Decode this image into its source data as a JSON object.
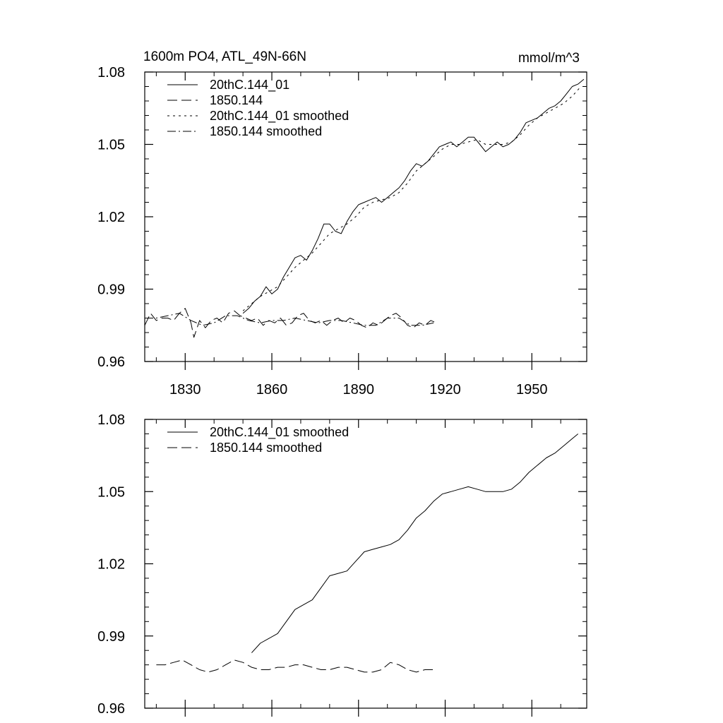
{
  "chart_data": [
    {
      "type": "line",
      "title": "1600m PO4, ATL_49N-66N",
      "units": "mmol/m^3",
      "xlim": [
        1816,
        1969
      ],
      "ylim": [
        0.96,
        1.08
      ],
      "xticks": [
        1830,
        1860,
        1890,
        1920,
        1950
      ],
      "xtick_labels": [
        "1830",
        "1860",
        "1890",
        "1920",
        "1950"
      ],
      "yticks": [
        0.96,
        0.99,
        1.02,
        1.05,
        1.08
      ],
      "ytick_labels": [
        "0.96",
        "0.99",
        "1.02",
        "1.05",
        "1.08"
      ],
      "legend_position": "top-left",
      "series": [
        {
          "name": "20thC.144_01",
          "style": "solid",
          "x": [
            1850,
            1852,
            1854,
            1856,
            1858,
            1860,
            1862,
            1864,
            1866,
            1868,
            1870,
            1872,
            1874,
            1876,
            1878,
            1880,
            1882,
            1884,
            1886,
            1888,
            1890,
            1892,
            1894,
            1896,
            1898,
            1900,
            1902,
            1904,
            1906,
            1908,
            1910,
            1912,
            1914,
            1916,
            1918,
            1920,
            1922,
            1924,
            1926,
            1928,
            1930,
            1932,
            1934,
            1936,
            1938,
            1940,
            1942,
            1944,
            1946,
            1948,
            1950,
            1952,
            1954,
            1956,
            1958,
            1960,
            1962,
            1964,
            1966,
            1968
          ],
          "y": [
            0.98,
            0.982,
            0.985,
            0.987,
            0.991,
            0.988,
            0.99,
            0.995,
            0.999,
            1.003,
            1.004,
            1.002,
            1.006,
            1.011,
            1.017,
            1.017,
            1.014,
            1.013,
            1.018,
            1.022,
            1.025,
            1.026,
            1.027,
            1.028,
            1.026,
            1.028,
            1.03,
            1.032,
            1.035,
            1.039,
            1.042,
            1.041,
            1.043,
            1.046,
            1.049,
            1.05,
            1.051,
            1.049,
            1.051,
            1.053,
            1.053,
            1.05,
            1.047,
            1.049,
            1.051,
            1.049,
            1.05,
            1.052,
            1.055,
            1.059,
            1.06,
            1.061,
            1.063,
            1.065,
            1.066,
            1.068,
            1.071,
            1.074,
            1.075,
            1.077
          ]
        },
        {
          "name": "1850.144",
          "style": "dash",
          "x": [
            1816,
            1818,
            1820,
            1822,
            1824,
            1826,
            1828,
            1830,
            1832,
            1833,
            1835,
            1837,
            1839,
            1841,
            1843,
            1845,
            1847,
            1849,
            1851,
            1853,
            1855,
            1857,
            1859,
            1861,
            1863,
            1865,
            1867,
            1869,
            1871,
            1873,
            1875,
            1877,
            1879,
            1881,
            1883,
            1885,
            1887,
            1889,
            1891,
            1893,
            1895,
            1897,
            1899,
            1901,
            1903,
            1905,
            1907,
            1909,
            1911,
            1913,
            1915,
            1917
          ],
          "y": [
            0.975,
            0.98,
            0.977,
            0.978,
            0.978,
            0.977,
            0.98,
            0.982,
            0.976,
            0.97,
            0.977,
            0.974,
            0.977,
            0.978,
            0.976,
            0.98,
            0.981,
            0.979,
            0.978,
            0.977,
            0.978,
            0.975,
            0.977,
            0.976,
            0.978,
            0.975,
            0.976,
            0.979,
            0.98,
            0.977,
            0.976,
            0.977,
            0.975,
            0.977,
            0.978,
            0.976,
            0.978,
            0.977,
            0.975,
            0.974,
            0.976,
            0.975,
            0.977,
            0.979,
            0.98,
            0.978,
            0.975,
            0.974,
            0.976,
            0.975,
            0.977,
            0.976
          ]
        },
        {
          "name": "20thC.144_01 smoothed",
          "style": "dot",
          "x": [
            1850,
            1853,
            1856,
            1859,
            1862,
            1865,
            1868,
            1871,
            1874,
            1877,
            1880,
            1883,
            1886,
            1889,
            1892,
            1895,
            1898,
            1901,
            1904,
            1907,
            1910,
            1913,
            1916,
            1919,
            1922,
            1925,
            1928,
            1931,
            1934,
            1937,
            1940,
            1943,
            1946,
            1949,
            1952,
            1955,
            1958,
            1961,
            1964,
            1967
          ],
          "y": [
            0.981,
            0.984,
            0.987,
            0.989,
            0.991,
            0.995,
            0.999,
            1.002,
            1.005,
            1.009,
            1.013,
            1.015,
            1.017,
            1.02,
            1.024,
            1.026,
            1.027,
            1.028,
            1.03,
            1.034,
            1.039,
            1.042,
            1.045,
            1.048,
            1.05,
            1.05,
            1.051,
            1.052,
            1.05,
            1.05,
            1.05,
            1.051,
            1.054,
            1.058,
            1.061,
            1.063,
            1.065,
            1.067,
            1.07,
            1.074
          ]
        },
        {
          "name": "1850.144 smoothed",
          "style": "dashdot",
          "x": [
            1816,
            1820,
            1824,
            1828,
            1832,
            1836,
            1840,
            1844,
            1848,
            1852,
            1856,
            1860,
            1864,
            1868,
            1872,
            1876,
            1880,
            1884,
            1888,
            1892,
            1896,
            1900,
            1904,
            1908,
            1912,
            1916
          ],
          "y": [
            0.978,
            0.978,
            0.979,
            0.98,
            0.977,
            0.975,
            0.976,
            0.979,
            0.979,
            0.977,
            0.976,
            0.977,
            0.977,
            0.978,
            0.977,
            0.976,
            0.977,
            0.977,
            0.976,
            0.975,
            0.975,
            0.978,
            0.978,
            0.975,
            0.975,
            0.976
          ]
        }
      ]
    },
    {
      "type": "line",
      "xlim": [
        1816,
        1969
      ],
      "ylim": [
        0.96,
        1.08
      ],
      "xticks": [
        1830,
        1860,
        1890,
        1920,
        1950
      ],
      "yticks": [
        0.96,
        0.99,
        1.02,
        1.05,
        1.08
      ],
      "ytick_labels": [
        "0.96",
        "0.99",
        "1.02",
        "1.05",
        "1.08"
      ],
      "legend_position": "top-left",
      "series": [
        {
          "name": "20thC.144_01 smoothed",
          "style": "solid",
          "x": [
            1853,
            1856,
            1859,
            1862,
            1865,
            1868,
            1871,
            1874,
            1877,
            1880,
            1883,
            1886,
            1889,
            1892,
            1895,
            1898,
            1901,
            1904,
            1907,
            1910,
            1913,
            1916,
            1919,
            1922,
            1925,
            1928,
            1931,
            1934,
            1937,
            1940,
            1943,
            1946,
            1949,
            1952,
            1955,
            1958,
            1961,
            1964,
            1966
          ],
          "y": [
            0.983,
            0.987,
            0.989,
            0.991,
            0.996,
            1.001,
            1.003,
            1.005,
            1.01,
            1.015,
            1.016,
            1.017,
            1.021,
            1.025,
            1.026,
            1.027,
            1.028,
            1.03,
            1.034,
            1.039,
            1.042,
            1.046,
            1.049,
            1.05,
            1.051,
            1.052,
            1.051,
            1.05,
            1.05,
            1.05,
            1.051,
            1.054,
            1.058,
            1.061,
            1.064,
            1.066,
            1.069,
            1.072,
            1.074
          ]
        },
        {
          "name": "1850.144 smoothed",
          "style": "dash",
          "x": [
            1820,
            1823,
            1826,
            1829,
            1832,
            1835,
            1838,
            1841,
            1844,
            1847,
            1850,
            1853,
            1856,
            1859,
            1862,
            1865,
            1868,
            1871,
            1874,
            1877,
            1880,
            1883,
            1886,
            1889,
            1892,
            1895,
            1898,
            1901,
            1904,
            1907,
            1910,
            1913,
            1916
          ],
          "y": [
            0.978,
            0.978,
            0.979,
            0.98,
            0.978,
            0.976,
            0.975,
            0.976,
            0.978,
            0.98,
            0.979,
            0.977,
            0.976,
            0.976,
            0.977,
            0.977,
            0.978,
            0.978,
            0.977,
            0.976,
            0.976,
            0.977,
            0.977,
            0.976,
            0.975,
            0.975,
            0.976,
            0.979,
            0.978,
            0.976,
            0.975,
            0.976,
            0.976
          ]
        }
      ]
    }
  ]
}
